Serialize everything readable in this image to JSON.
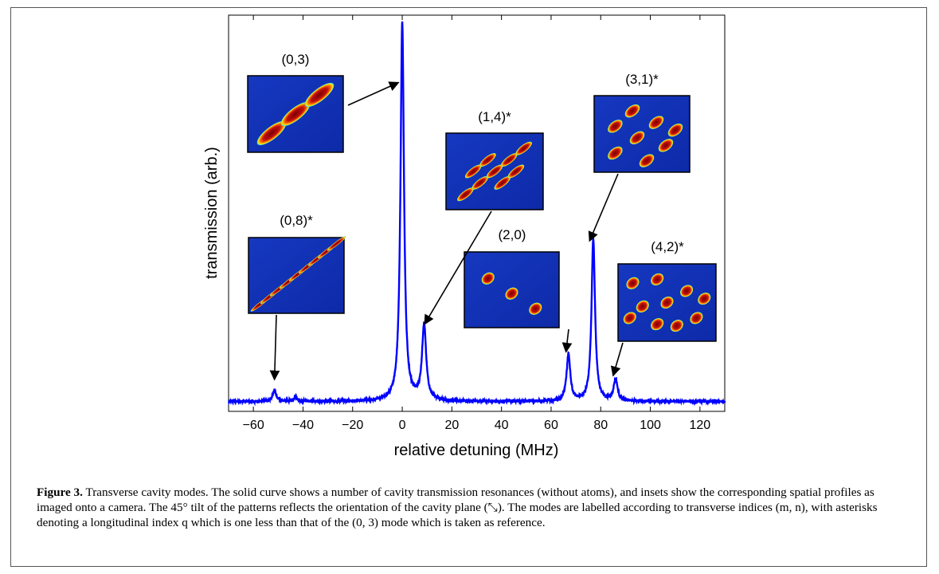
{
  "chart_data": {
    "type": "line",
    "xlabel": "relative detuning (MHz)",
    "ylabel": "transmission (arb.)",
    "xlim": [
      -70,
      130
    ],
    "ylim": [
      0,
      1.0
    ],
    "xticks": [
      -60,
      -40,
      -20,
      0,
      20,
      40,
      60,
      80,
      100,
      120
    ],
    "xtick_labels": [
      "−60",
      "−40",
      "−20",
      "0",
      "20",
      "40",
      "60",
      "80",
      "100",
      "120"
    ],
    "baseline": 0.025,
    "series": [
      {
        "color": "#0000ff",
        "peaks": [
          {
            "x": -51.5,
            "height": 0.03,
            "width": 0.8
          },
          {
            "x": -43,
            "height": 0.012,
            "width": 0.8
          },
          {
            "x": 0,
            "height": 0.955,
            "width": 0.85
          },
          {
            "x": 8.8,
            "height": 0.19,
            "width": 1.0
          },
          {
            "x": 67,
            "height": 0.118,
            "width": 0.9
          },
          {
            "x": 77,
            "height": 0.41,
            "width": 0.85
          },
          {
            "x": 86,
            "height": 0.055,
            "width": 0.9
          }
        ]
      }
    ],
    "annotations": [
      {
        "label": "(0,3)",
        "pattern": "pattern-0-3",
        "target": {
          "x": -1.5,
          "y": 0.83
        }
      },
      {
        "label": "(1,4)*",
        "pattern": "pattern-1-4",
        "target": {
          "x": 9,
          "y": 0.22
        }
      },
      {
        "label": "(3,1)*",
        "pattern": "pattern-3-1",
        "target": {
          "x": 75.5,
          "y": 0.43
        }
      },
      {
        "label": "(0,8)*",
        "pattern": "pattern-0-8",
        "target": {
          "x": -51.5,
          "y": 0.08
        }
      },
      {
        "label": "(2,0)",
        "pattern": "pattern-2-0",
        "target": {
          "x": 66,
          "y": 0.15
        }
      },
      {
        "label": "(4,2)*",
        "pattern": "pattern-4-2",
        "target": {
          "x": 85,
          "y": 0.09
        }
      }
    ],
    "colors": {
      "curve": "#0000ff",
      "inset_background": "#1a3ec8",
      "pattern_core": "#8b0a0a",
      "pattern_edge": "#ffe000"
    }
  },
  "caption": {
    "figure_label": "Figure 3.",
    "text": " Transverse cavity modes. The solid curve shows a number of cavity transmission resonances (without atoms), and insets show the corresponding spatial profiles as imaged onto a camera. The 45° tilt of the patterns reflects the orientation of the cavity plane (⤡). The modes are labelled according to transverse indices (m, n), with asterisks denoting a longitudinal index q which is one less than that of the (0, 3) mode which is taken as reference."
  }
}
